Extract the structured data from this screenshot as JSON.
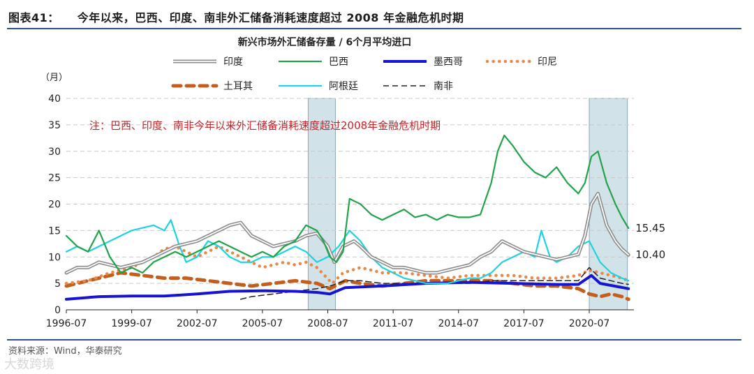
{
  "figure": {
    "number": "图表41：",
    "title": "今年以来，巴西、印度、南非外汇储备消耗速度超过 2008 年金融危机时期",
    "source": "资料来源：Wind，华泰研究",
    "watermark": "大数跨境"
  },
  "chart_data": {
    "type": "line",
    "title": "新兴市场外汇储备存量 / 6个月平均进口",
    "ylabel": "（月）",
    "xlabel": "",
    "ylim": [
      0,
      40
    ],
    "yticks": [
      0,
      5,
      10,
      15,
      20,
      25,
      30,
      35,
      40
    ],
    "xlim": [
      1996.5,
      2022.55
    ],
    "xticks": [
      "1996-07",
      "1999-07",
      "2002-07",
      "2005-07",
      "2008-07",
      "2011-07",
      "2014-07",
      "2017-07",
      "2020-07"
    ],
    "grid": "horizontal-dashed",
    "annotation": "注：巴西、印度、南非今年以来外汇储备消耗速度超过2008年金融危机时期",
    "shaded_periods": [
      [
        2007.6,
        2008.85
      ],
      [
        2020.5,
        2022.25
      ]
    ],
    "end_labels": [
      {
        "series": "巴西",
        "text": "15.45",
        "value": 15.45
      },
      {
        "series": "印度",
        "text": "10.40",
        "value": 10.4
      }
    ],
    "series": [
      {
        "name": "印度",
        "color": "#8c8c8c",
        "style": "double",
        "x": [
          1996.5,
          1997,
          1997.5,
          1998,
          1998.5,
          1999,
          1999.5,
          2000,
          2000.5,
          2001,
          2001.5,
          2002,
          2002.5,
          2003,
          2003.5,
          2004,
          2004.5,
          2005,
          2005.5,
          2006,
          2006.5,
          2007,
          2007.5,
          2008,
          2008.5,
          2008.8,
          2009.2,
          2009.7,
          2010,
          2010.5,
          2011,
          2011.5,
          2012,
          2012.5,
          2013,
          2013.5,
          2014,
          2014.5,
          2015,
          2015.5,
          2016,
          2016.5,
          2017,
          2017.5,
          2018,
          2018.5,
          2019,
          2019.5,
          2020,
          2020.3,
          2020.6,
          2020.9,
          2021.3,
          2021.7,
          2022,
          2022.3
        ],
        "y": [
          7,
          8,
          8,
          9,
          8.5,
          8,
          8.5,
          9,
          10,
          11,
          12,
          12.5,
          13,
          14,
          15,
          16,
          16.5,
          14,
          13,
          12,
          12.5,
          13,
          14,
          14.5,
          12,
          9,
          12,
          13,
          12,
          10,
          9,
          8,
          8,
          7.5,
          7,
          7,
          7.5,
          8,
          8.5,
          10,
          11,
          13,
          12,
          11,
          10.5,
          10,
          9.5,
          10,
          10.5,
          14,
          20,
          22,
          16,
          13,
          11.5,
          10.4
        ]
      },
      {
        "name": "巴西",
        "color": "#22a24a",
        "style": "solid",
        "x": [
          1996.5,
          1997,
          1997.5,
          1998,
          1998.5,
          1999,
          1999.5,
          2000,
          2000.5,
          2001,
          2001.5,
          2002,
          2002.5,
          2003,
          2003.5,
          2004,
          2004.5,
          2005,
          2005.5,
          2006,
          2006.5,
          2007,
          2007.5,
          2008,
          2008.3,
          2008.6,
          2008.9,
          2009.2,
          2009.5,
          2010,
          2010.5,
          2011,
          2011.5,
          2012,
          2012.5,
          2013,
          2013.5,
          2014,
          2014.5,
          2015,
          2015.5,
          2016,
          2016.3,
          2016.6,
          2017,
          2017.5,
          2018,
          2018.5,
          2019,
          2019.5,
          2020,
          2020.3,
          2020.6,
          2020.9,
          2021.3,
          2021.7,
          2022,
          2022.3
        ],
        "y": [
          14,
          12,
          11,
          15,
          10,
          7,
          8,
          7,
          9,
          10,
          11,
          10,
          11,
          12,
          13,
          12,
          11,
          10,
          11,
          10,
          12,
          13,
          16,
          15,
          13,
          10,
          9,
          11,
          21,
          20,
          18,
          17,
          18,
          19,
          17.5,
          18,
          17,
          18,
          17.5,
          17.5,
          18,
          24,
          30,
          33,
          31,
          28,
          26,
          25,
          27,
          24,
          22,
          24,
          29,
          30,
          24,
          20,
          17.5,
          15.45
        ]
      },
      {
        "name": "墨西哥",
        "color": "#1414d2",
        "style": "thick",
        "x": [
          1996.5,
          1998,
          1999.5,
          2001,
          2002.5,
          2004,
          2005.5,
          2007,
          2008,
          2008.6,
          2009.3,
          2011,
          2013,
          2015,
          2017,
          2019,
          2020,
          2020.6,
          2021,
          2022.3
        ],
        "y": [
          2,
          2.5,
          2.6,
          2.6,
          3,
          3.5,
          3.6,
          3.5,
          3.3,
          3,
          4.2,
          4.5,
          5,
          5.2,
          5,
          4.8,
          4.8,
          6.5,
          5,
          4
        ]
      },
      {
        "name": "印尼",
        "color": "#e8894a",
        "style": "dotted",
        "x": [
          1996.5,
          1997.5,
          1998.5,
          1999.5,
          2000.5,
          2001,
          2001.5,
          2002,
          2002.5,
          2003,
          2003.5,
          2004,
          2004.5,
          2005,
          2005.5,
          2006,
          2006.5,
          2007,
          2007.5,
          2008,
          2008.7,
          2009.2,
          2010,
          2011,
          2012,
          2013,
          2014,
          2015,
          2016,
          2017,
          2018,
          2019,
          2020,
          2020.5,
          2021,
          2021.5,
          2022,
          2022.3
        ],
        "y": [
          5,
          5.5,
          7,
          8,
          10,
          11.5,
          12,
          11,
          10,
          11,
          12,
          11,
          10,
          9,
          8,
          8.5,
          9,
          8.5,
          9,
          8,
          5,
          7,
          8,
          7,
          7,
          6.5,
          6,
          6.5,
          6.5,
          6.5,
          6,
          6,
          6.5,
          7.5,
          7,
          6.5,
          6,
          5.5
        ]
      },
      {
        "name": "土耳其",
        "color": "#c45e1c",
        "style": "dashed",
        "x": [
          1996.5,
          1997,
          1998,
          1999,
          2000,
          2001,
          2002,
          2003,
          2004,
          2005,
          2006,
          2007,
          2008,
          2008.6,
          2009.3,
          2010,
          2011,
          2012,
          2013,
          2014,
          2015,
          2016,
          2017,
          2018,
          2019,
          2020,
          2020.5,
          2021,
          2021.5,
          2022,
          2022.3
        ],
        "y": [
          4.5,
          5,
          6,
          7,
          6.5,
          6,
          6,
          5.5,
          5,
          4.5,
          5,
          5.5,
          5,
          4,
          5.5,
          5,
          4.5,
          5,
          5.5,
          5.5,
          5.5,
          5.5,
          5,
          4.5,
          4.5,
          4,
          3,
          2.5,
          3,
          2.5,
          2
        ]
      },
      {
        "name": "阿根廷",
        "color": "#1dd3e0",
        "style": "solid",
        "x": [
          1996.5,
          1997,
          1997.5,
          1998,
          1998.5,
          1999,
          1999.5,
          2000,
          2000.5,
          2001,
          2001.3,
          2001.7,
          2002,
          2002.5,
          2003,
          2003.5,
          2004,
          2004.5,
          2005,
          2005.5,
          2006,
          2006.5,
          2007,
          2007.5,
          2008,
          2008.5,
          2009,
          2009.5,
          2010,
          2010.5,
          2011,
          2011.5,
          2012,
          2012.5,
          2013,
          2013.5,
          2014,
          2014.5,
          2015,
          2015.5,
          2016,
          2016.5,
          2017,
          2017.5,
          2018,
          2018.3,
          2018.7,
          2019,
          2019.5,
          2020,
          2020.5,
          2021,
          2021.5,
          2022,
          2022.3
        ],
        "y": [
          11,
          12,
          11,
          12,
          13,
          14,
          15,
          15.5,
          16,
          15,
          17,
          12,
          9,
          10,
          13,
          12,
          10,
          9,
          9,
          10,
          10,
          11,
          12,
          11,
          9,
          10,
          12,
          15,
          13,
          10,
          8,
          7,
          6,
          5.5,
          5,
          5,
          5,
          5.5,
          6,
          6,
          7,
          9,
          10,
          11,
          10,
          15,
          10,
          9,
          10,
          12,
          13,
          9,
          7,
          6,
          5.5
        ]
      },
      {
        "name": "南非",
        "color": "#222222",
        "style": "longdash",
        "x": [
          2004.5,
          2005,
          2006,
          2007,
          2008,
          2008.6,
          2009.3,
          2010,
          2011,
          2012,
          2013,
          2014,
          2015,
          2016,
          2017,
          2018,
          2019,
          2020,
          2020.5,
          2021,
          2022,
          2022.3
        ],
        "y": [
          2,
          2.5,
          3,
          3.5,
          4,
          4.5,
          5.5,
          5.5,
          5,
          5,
          5,
          5,
          5,
          5.5,
          5.5,
          5.5,
          5.5,
          5.5,
          8,
          6,
          5,
          4.8
        ]
      }
    ]
  }
}
